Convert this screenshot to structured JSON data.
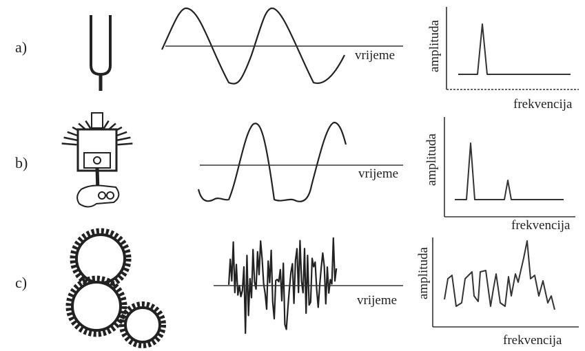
{
  "rows": [
    {
      "label": "a)",
      "time_axis": "vrijeme",
      "y_axis": "amplituda",
      "x_axis": "frekvencija"
    },
    {
      "label": "b)",
      "time_axis": "vrijeme",
      "y_axis": "amplituda",
      "x_axis": "frekvencija"
    },
    {
      "label": "c)",
      "time_axis": "vrijeme",
      "y_axis": "amplituda",
      "x_axis": "frekvencija"
    }
  ]
}
